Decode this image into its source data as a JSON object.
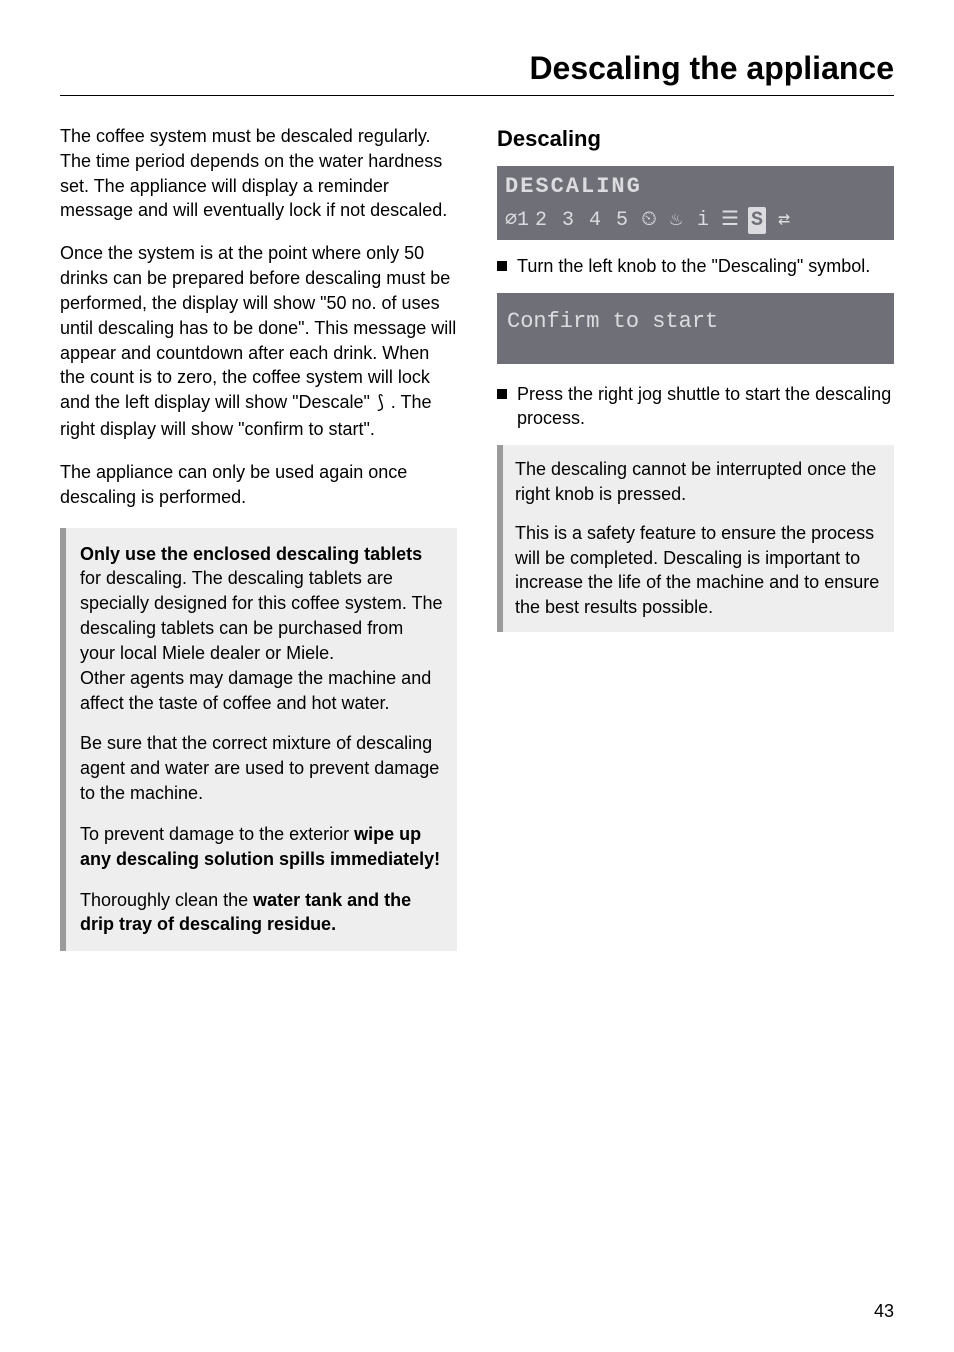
{
  "page_title": "Descaling the appliance",
  "left": {
    "p1": "The coffee system must be descaled regularly. The time period depends on the water hardness set. The appliance will display a reminder message and will eventually lock if not descaled.",
    "p2_a": "Once the system is at the point where only 50 drinks can be prepared before descaling must be performed, the display will show \"50 no. of uses until descaling has to be done\". This message will appear and countdown after each drink. When the count is to zero, the coffee system will lock and the left display will show \"Descale\" ",
    "p2_sym": "⟆",
    "p2_b": " . The right display will show \"confirm to start\".",
    "p3": "The appliance can only be used again once descaling is performed.",
    "callout": {
      "p1_bold": "Only use the enclosed descaling tablets",
      "p1_rest": " for descaling. The descaling tablets are specially designed for this coffee system. The descaling tablets can be purchased from your local Miele dealer or Miele.",
      "p1_tail": "Other agents may damage the machine and affect the taste of coffee and hot water.",
      "p2": "Be sure that the correct mixture of descaling agent and water are used to prevent damage to the machine.",
      "p3_a": "To prevent damage to the exterior ",
      "p3_bold": "wipe up any descaling solution spills immediately!",
      "p4_a": "Thoroughly clean the ",
      "p4_bold": "water tank and the drip tray of descaling residue."
    }
  },
  "right": {
    "heading": "Descaling",
    "display1_line1": "DESCALING",
    "display1_syms": {
      "d0": "∅1",
      "d1": "2",
      "d2": "3",
      "d3": "4",
      "d4": "5",
      "clock": "⏲",
      "cup": "♨",
      "info": "i",
      "rinse": "☰",
      "descale": "S",
      "arrows": "⇄"
    },
    "bullet1": "Turn the left knob to the \"Descaling\" symbol.",
    "display2": "Confirm to start",
    "bullet2": "Press the right jog shuttle to start the descaling process.",
    "callout": {
      "p1": "The descaling cannot be interrupted once the right knob is pressed.",
      "p2": "This is a safety feature to ensure the process will be completed. Descaling is important to increase the life of the machine and to ensure the best results possible."
    }
  },
  "page_number": "43",
  "colors": {
    "panel_bg": "#6f6f78",
    "panel_fg": "#dcdce0",
    "callout_border": "#9a9a9a",
    "callout_bg": "#eeeeee"
  }
}
